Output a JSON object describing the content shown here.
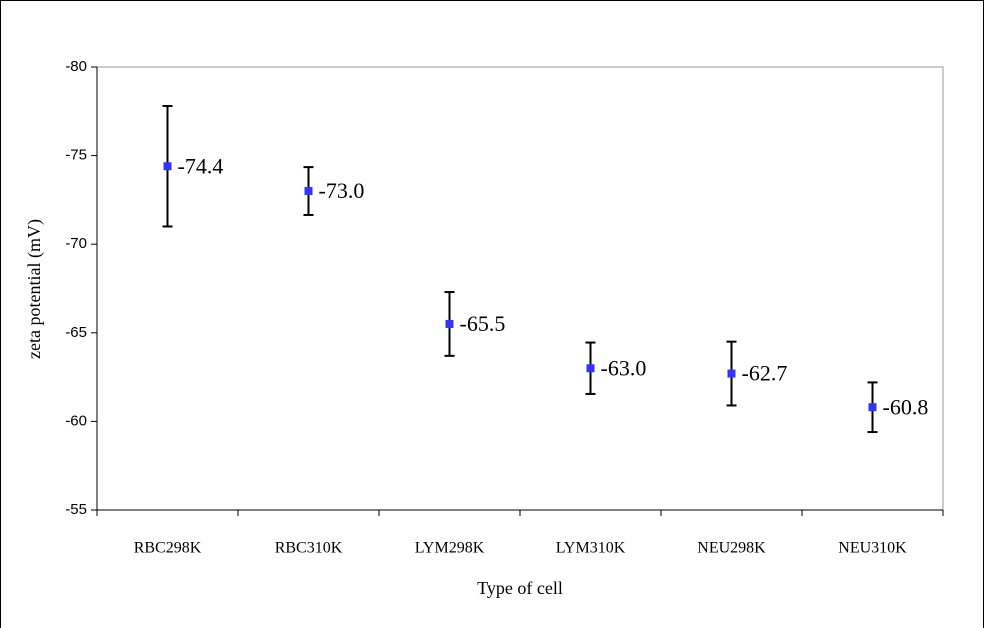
{
  "chart_data": {
    "type": "errorbar",
    "x_label": "Type of cell",
    "y_label": "zeta potential (mV)",
    "categories": [
      "RBC298K",
      "RBC310K",
      "LYM298K",
      "LYM310K",
      "NEU298K",
      "NEU310K"
    ],
    "values": [
      -74.4,
      -73.0,
      -65.5,
      -63.0,
      -62.7,
      -60.8
    ],
    "value_labels": [
      "-74.4",
      "-73.0",
      "-65.5",
      "-63.0",
      "-62.7",
      "-60.8"
    ],
    "errors": [
      3.4,
      1.35,
      1.8,
      1.45,
      1.8,
      1.4
    ],
    "color": "#3333ff",
    "ylim": [
      -55,
      -80
    ],
    "yticks": [
      -55,
      -60,
      -65,
      -70,
      -75,
      -80
    ]
  }
}
